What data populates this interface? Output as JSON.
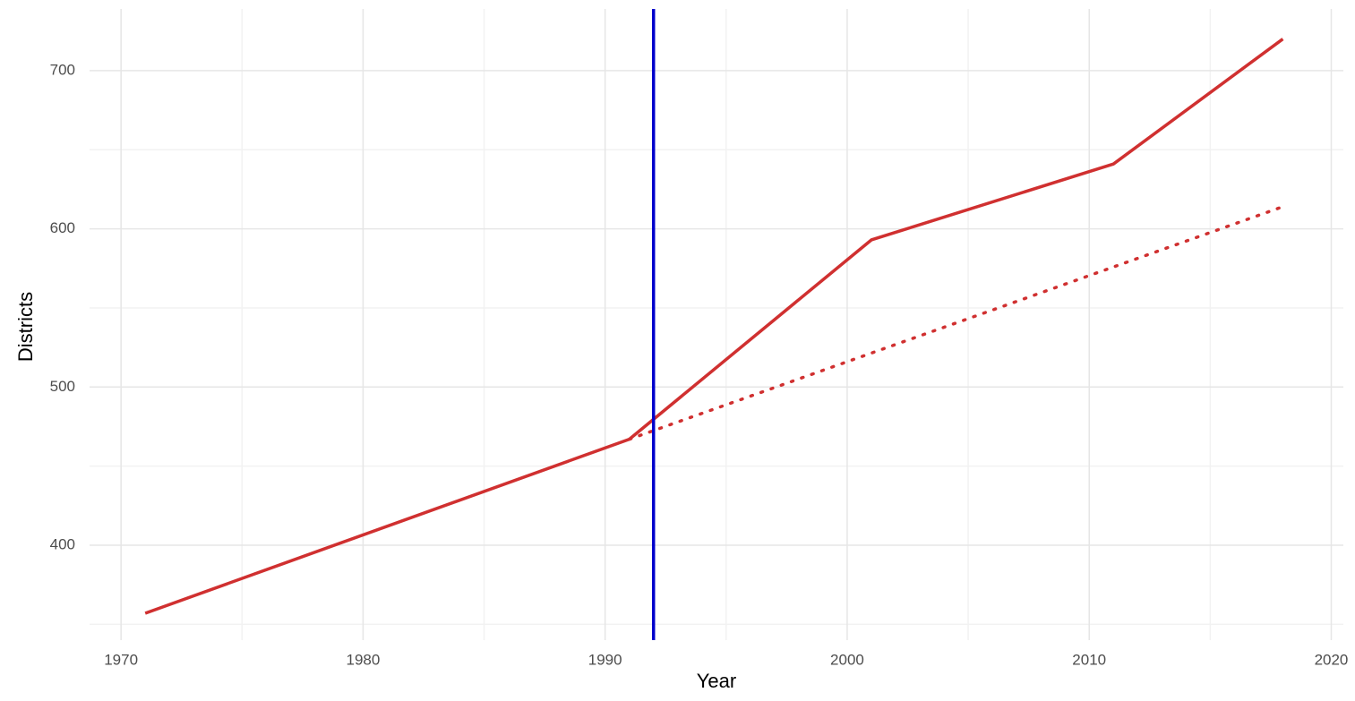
{
  "chart_data": {
    "type": "line",
    "x_label": "Year",
    "y_label": "Districts",
    "xlim": [
      1968.7,
      2020.5
    ],
    "ylim": [
      340,
      739
    ],
    "xticks": [
      1970,
      1980,
      1990,
      2000,
      2010,
      2020
    ],
    "yticks": [
      400,
      500,
      600,
      700
    ],
    "xminor_ticks": [
      1975,
      1985,
      1995,
      2005,
      2015
    ],
    "yminor_ticks": [
      350,
      450,
      550,
      650
    ],
    "grid": true,
    "series": [
      {
        "color": "#d03030",
        "dash": "solid",
        "x": [
          1971,
          1991,
          2001,
          2011,
          2018
        ],
        "values": [
          357,
          467,
          593,
          641,
          720
        ]
      },
      {
        "color": "#d03030",
        "dash": "dotted",
        "x": [
          1991,
          2018
        ],
        "values": [
          467,
          614
        ]
      }
    ],
    "vlines": [
      {
        "x": 1992,
        "color": "#0000cc"
      }
    ]
  }
}
